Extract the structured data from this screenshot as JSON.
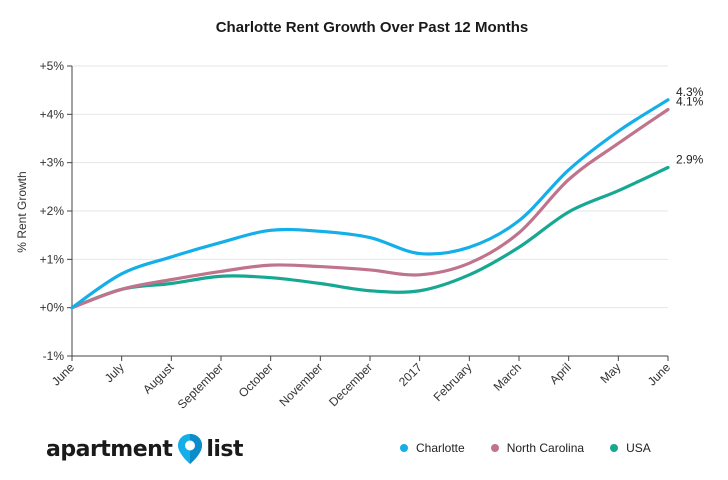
{
  "chart_data": {
    "type": "line",
    "title": "Charlotte Rent Growth Over Past 12 Months",
    "ylabel": "% Rent Growth",
    "xlabel": "",
    "ylim": [
      -1,
      5
    ],
    "yticks": [
      "+5%",
      "+4%",
      "+3%",
      "+2%",
      "+1%",
      "+0%",
      "-1%"
    ],
    "categories": [
      "June",
      "July",
      "August",
      "September",
      "October",
      "November",
      "December",
      "2017",
      "February",
      "March",
      "April",
      "May",
      "June"
    ],
    "series": [
      {
        "name": "Charlotte",
        "color": "#14aee8",
        "end_label": "4.3%",
        "values": [
          0,
          0.7,
          1.05,
          1.35,
          1.6,
          1.58,
          1.45,
          1.12,
          1.25,
          1.8,
          2.85,
          3.65,
          4.3
        ]
      },
      {
        "name": "North Carolina",
        "color": "#c0748c",
        "end_label": "4.1%",
        "values": [
          0,
          0.38,
          0.58,
          0.75,
          0.88,
          0.85,
          0.78,
          0.68,
          0.92,
          1.55,
          2.65,
          3.4,
          4.1
        ]
      },
      {
        "name": "USA",
        "color": "#16a892",
        "end_label": "2.9%",
        "values": [
          0,
          0.38,
          0.5,
          0.65,
          0.62,
          0.5,
          0.35,
          0.35,
          0.68,
          1.25,
          1.98,
          2.42,
          2.9
        ]
      }
    ],
    "grid": true,
    "legend_position": "bottom-right"
  },
  "brand": {
    "left_text": "apartment",
    "right_text": "list",
    "icon": "map-pin-icon"
  }
}
